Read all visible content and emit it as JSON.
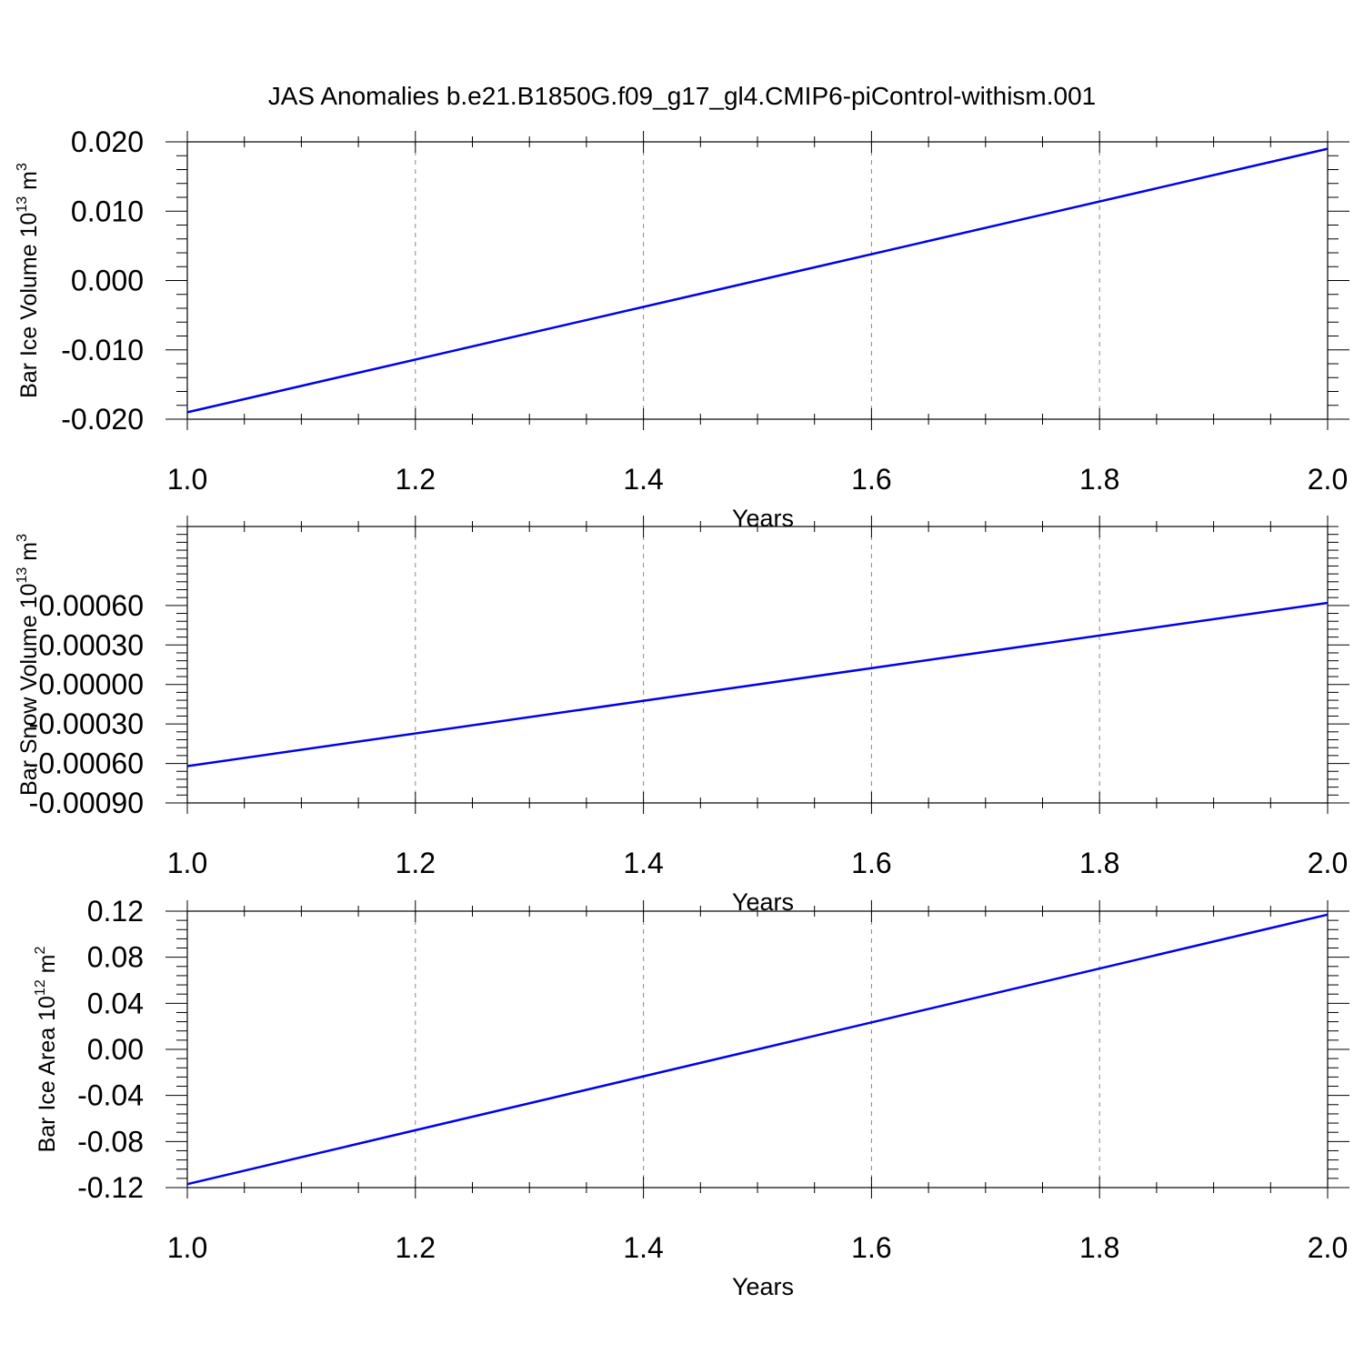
{
  "title": "JAS Anomalies b.e21.B1850G.f09_g17_gl4.CMIP6-piControl-withism.001",
  "colors": {
    "line": "#0000ee",
    "axis": "#000000",
    "grid": "#888888"
  },
  "chart_data": [
    {
      "type": "line",
      "xlabel": "Years",
      "ylabel": {
        "prefix": "Bar Ice Volume 10",
        "exp": "13",
        "unit": " m",
        "unit_exp": "3"
      },
      "xlim": [
        1.0,
        2.0
      ],
      "ylim": [
        -0.02,
        0.02
      ],
      "x_ticks": [
        "1.0",
        "1.2",
        "1.4",
        "1.6",
        "1.8",
        "2.0"
      ],
      "x_tick_values": [
        1.0,
        1.2,
        1.4,
        1.6,
        1.8,
        2.0
      ],
      "y_ticks": [
        "0.020",
        "0.010",
        "0.000",
        "-0.010",
        "-0.020"
      ],
      "y_tick_values": [
        0.02,
        0.01,
        0.0,
        -0.01,
        -0.02
      ],
      "grid": "vertical dashed",
      "series": [
        {
          "x": [
            1.0,
            2.0
          ],
          "y": [
            -0.019,
            0.019
          ]
        }
      ]
    },
    {
      "type": "line",
      "xlabel": "Years",
      "ylabel": {
        "prefix": "Bar Snow Volume 10",
        "exp": "13",
        "unit": " m",
        "unit_exp": "3"
      },
      "xlim": [
        1.0,
        2.0
      ],
      "ylim": [
        -0.0009,
        0.0012
      ],
      "x_ticks": [
        "1.0",
        "1.2",
        "1.4",
        "1.6",
        "1.8",
        "2.0"
      ],
      "x_tick_values": [
        1.0,
        1.2,
        1.4,
        1.6,
        1.8,
        2.0
      ],
      "y_ticks": [
        "0.00060",
        "0.00030",
        "0.00000",
        "-0.00030",
        "-0.00060",
        "-0.00090"
      ],
      "y_tick_values": [
        0.0006,
        0.0003,
        0.0,
        -0.0003,
        -0.0006,
        -0.0009
      ],
      "grid": "vertical dashed",
      "series": [
        {
          "x": [
            1.0,
            2.0
          ],
          "y": [
            -0.00062,
            0.00062
          ]
        }
      ]
    },
    {
      "type": "line",
      "xlabel": "Years",
      "ylabel": {
        "prefix": "Bar Ice Area 10",
        "exp": "12",
        "unit": " m",
        "unit_exp": "2"
      },
      "xlim": [
        1.0,
        2.0
      ],
      "ylim": [
        -0.12,
        0.12
      ],
      "x_ticks": [
        "1.0",
        "1.2",
        "1.4",
        "1.6",
        "1.8",
        "2.0"
      ],
      "x_tick_values": [
        1.0,
        1.2,
        1.4,
        1.6,
        1.8,
        2.0
      ],
      "y_ticks": [
        "0.12",
        "0.08",
        "0.04",
        "0.00",
        "-0.04",
        "-0.08",
        "-0.12"
      ],
      "y_tick_values": [
        0.12,
        0.08,
        0.04,
        0.0,
        -0.04,
        -0.08,
        -0.12
      ],
      "grid": "vertical dashed",
      "series": [
        {
          "x": [
            1.0,
            2.0
          ],
          "y": [
            -0.117,
            0.117
          ]
        }
      ]
    }
  ]
}
